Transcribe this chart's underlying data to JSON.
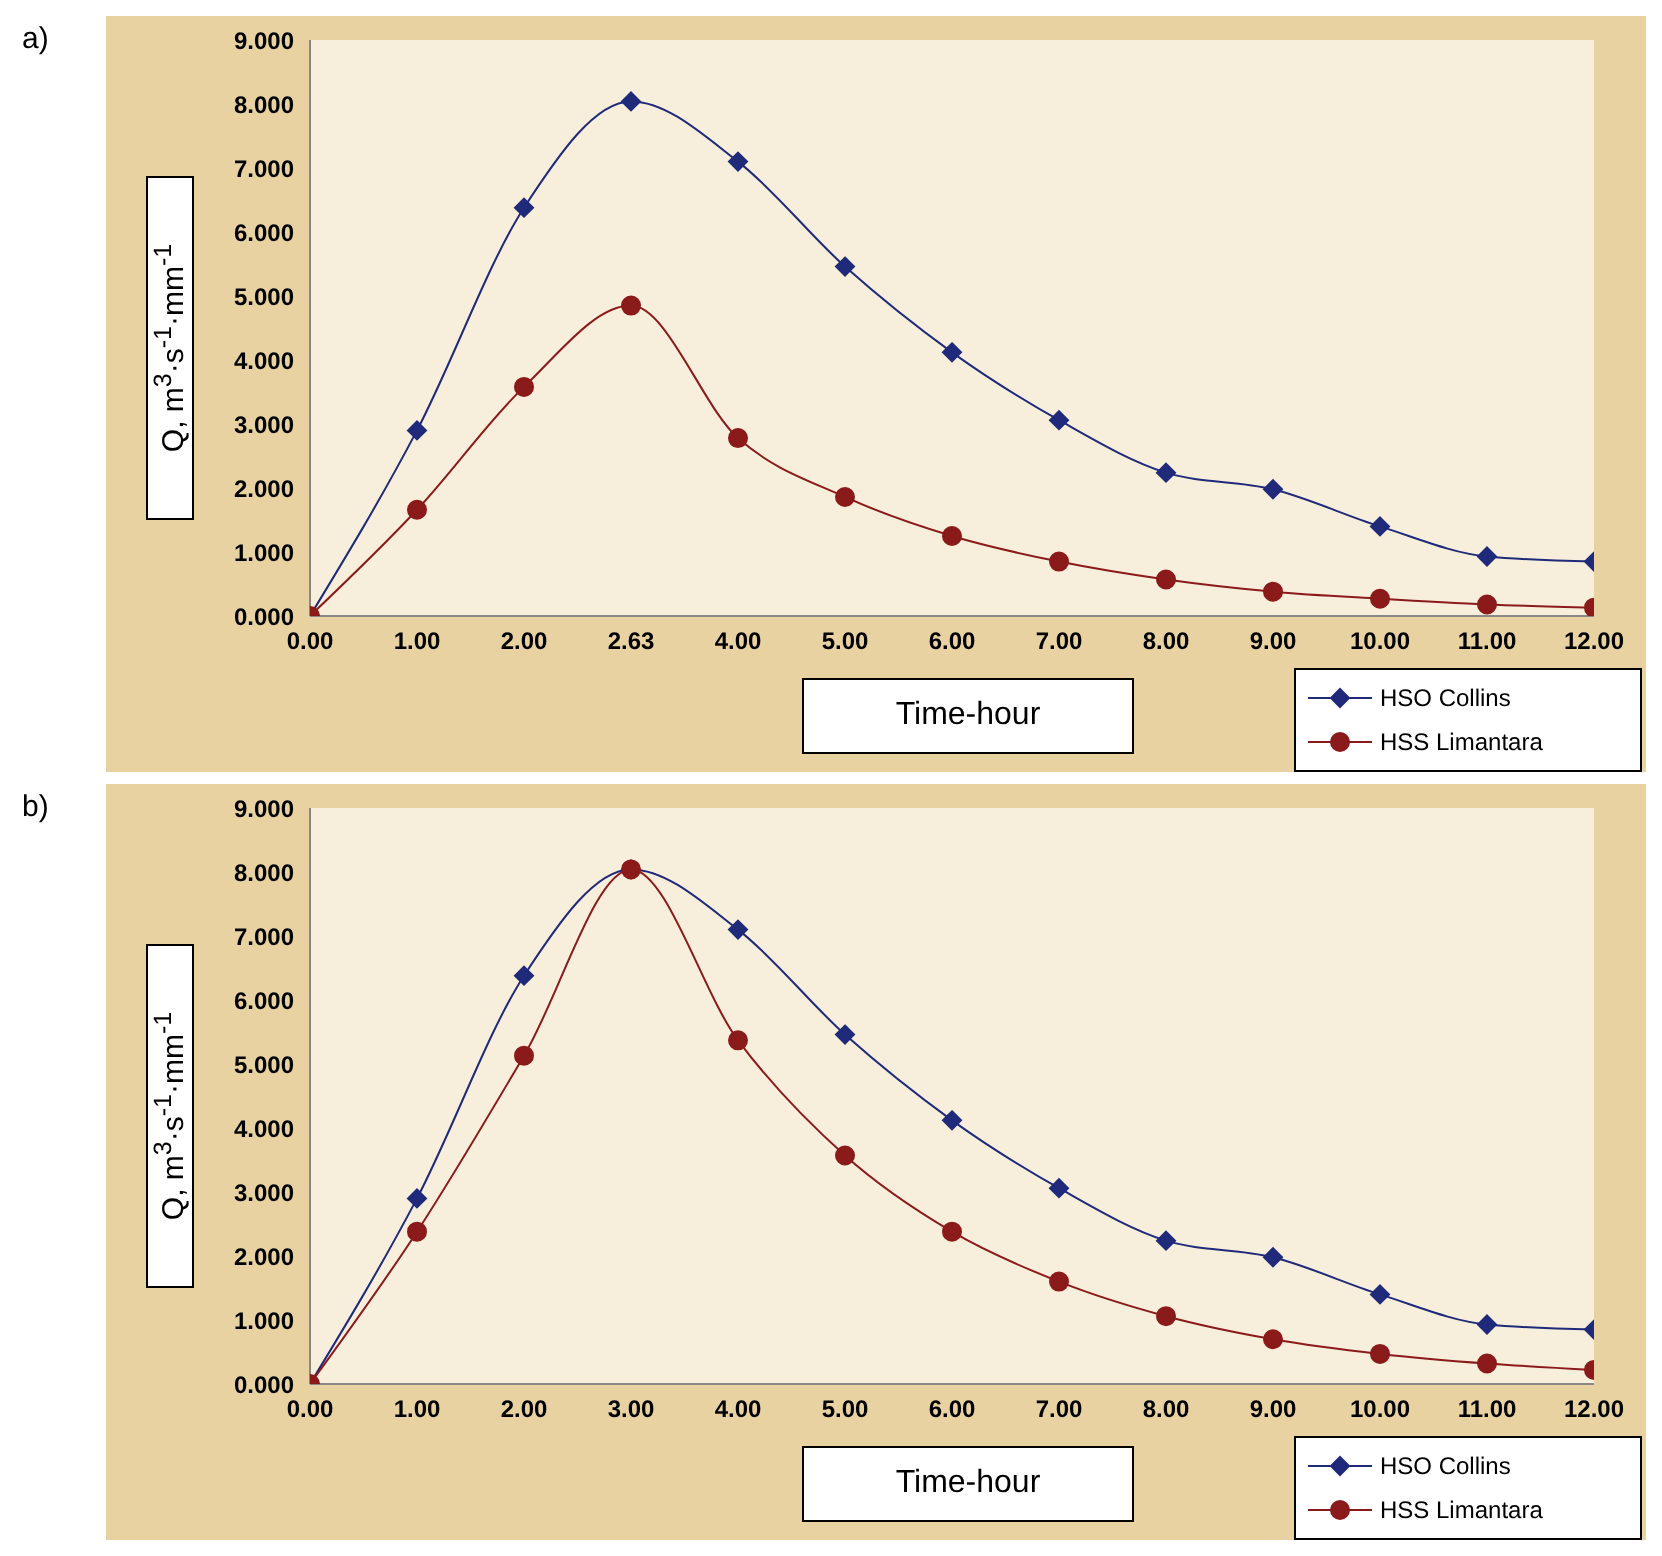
{
  "chart_data": [
    {
      "type": "line",
      "annotations": [
        "a)"
      ],
      "xlabel": "Time-hour",
      "ylabel": "Q, m$^{3}$·s$^{-1}$·mm$^{-1}$",
      "categories": [
        "0.00",
        "1.00",
        "2.00",
        "2.63",
        "4.00",
        "5.00",
        "6.00",
        "7.00",
        "8.00",
        "9.00",
        "10.00",
        "11.00",
        "12.00"
      ],
      "series": [
        {
          "name": "HSO Collins",
          "color": "#1f2a7a",
          "marker": "diamond",
          "values": [
            0,
            2.9,
            6.38,
            8.04,
            7.1,
            5.46,
            4.12,
            3.06,
            2.24,
            1.98,
            1.4,
            0.93,
            0.85
          ]
        },
        {
          "name": "HSS Limantara",
          "color": "#8b1a1a",
          "marker": "circle",
          "values": [
            0,
            1.66,
            3.58,
            4.85,
            2.78,
            1.86,
            1.25,
            0.85,
            0.57,
            0.38,
            0.27,
            0.18,
            0.13
          ]
        }
      ],
      "ylim": [
        0,
        9
      ],
      "yticks": [
        {
          "value": 0,
          "label": "0.000"
        },
        {
          "value": 1,
          "label": "1.000"
        },
        {
          "value": 2,
          "label": "2.000"
        },
        {
          "value": 3,
          "label": "3.000"
        },
        {
          "value": 4,
          "label": "4.000"
        },
        {
          "value": 5,
          "label": "5.000"
        },
        {
          "value": 6,
          "label": "6.000"
        },
        {
          "value": 7,
          "label": "7.000"
        },
        {
          "value": 8,
          "label": "8.000"
        },
        {
          "value": 9,
          "label": "9.000"
        }
      ],
      "grid": false,
      "legend": "bottom right"
    },
    {
      "type": "line",
      "annotations": [
        "b)"
      ],
      "xlabel": "Time-hour",
      "ylabel": "Q, m$^{3}$·s$^{-1}$·mm$^{-1}$",
      "categories": [
        "0.00",
        "1.00",
        "2.00",
        "3.00",
        "4.00",
        "5.00",
        "6.00",
        "7.00",
        "8.00",
        "9.00",
        "10.00",
        "11.00",
        "12.00"
      ],
      "series": [
        {
          "name": "HSO Collins",
          "color": "#1f2a7a",
          "marker": "diamond",
          "values": [
            0,
            2.9,
            6.38,
            8.04,
            7.1,
            5.46,
            4.12,
            3.06,
            2.24,
            1.98,
            1.4,
            0.93,
            0.85
          ]
        },
        {
          "name": "HSS Limantara",
          "color": "#8b1a1a",
          "marker": "circle",
          "values": [
            0,
            2.38,
            5.13,
            8.04,
            5.37,
            3.57,
            2.38,
            1.6,
            1.06,
            0.7,
            0.47,
            0.32,
            0.22
          ]
        }
      ],
      "ylim": [
        0,
        9
      ],
      "yticks": [
        {
          "value": 0,
          "label": "0.000"
        },
        {
          "value": 1,
          "label": "1.000"
        },
        {
          "value": 2,
          "label": "2.000"
        },
        {
          "value": 3,
          "label": "3.000"
        },
        {
          "value": 4,
          "label": "4.000"
        },
        {
          "value": 5,
          "label": "5.000"
        },
        {
          "value": 6,
          "label": "6.000"
        },
        {
          "value": 7,
          "label": "7.000"
        },
        {
          "value": 8,
          "label": "8.000"
        },
        {
          "value": 9,
          "label": "9.000"
        }
      ],
      "grid": false,
      "legend": "bottom right"
    }
  ]
}
